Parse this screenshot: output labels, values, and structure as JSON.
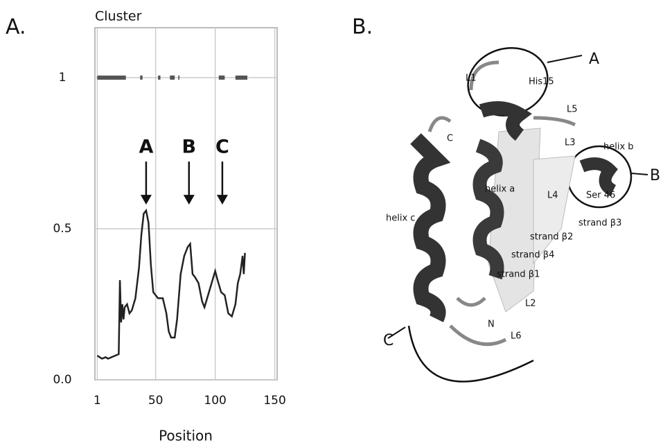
{
  "chart_data": {
    "type": "line",
    "panel_label": "A.",
    "ylabel": "Cluster",
    "xlabel": "Position",
    "x": [
      1,
      3,
      5,
      8,
      10,
      13,
      16,
      19,
      20,
      21,
      22,
      23,
      24,
      26,
      28,
      30,
      33,
      36,
      38,
      40,
      42,
      44,
      46,
      48,
      52,
      56,
      59,
      61,
      63,
      66,
      68,
      71,
      74,
      77,
      79,
      81,
      83,
      86,
      89,
      91,
      94,
      97,
      100,
      102,
      105,
      108,
      111,
      114,
      117,
      119,
      121,
      123,
      124,
      125
    ],
    "series": [
      {
        "color": "#222222",
        "values": [
          0.08,
          0.075,
          0.07,
          0.075,
          0.07,
          0.075,
          0.08,
          0.085,
          0.33,
          0.19,
          0.25,
          0.2,
          0.24,
          0.25,
          0.22,
          0.23,
          0.27,
          0.37,
          0.48,
          0.55,
          0.56,
          0.52,
          0.38,
          0.29,
          0.27,
          0.27,
          0.22,
          0.16,
          0.14,
          0.14,
          0.2,
          0.35,
          0.41,
          0.44,
          0.45,
          0.35,
          0.34,
          0.32,
          0.26,
          0.24,
          0.28,
          0.32,
          0.36,
          0.33,
          0.29,
          0.28,
          0.22,
          0.21,
          0.25,
          0.32,
          0.35,
          0.41,
          0.35,
          0.42
        ]
      }
    ],
    "segments": {
      "color": "#555555",
      "value": 1,
      "ranges": [
        [
          1,
          25
        ],
        [
          37,
          39
        ],
        [
          52,
          54
        ],
        [
          62,
          66
        ],
        [
          69,
          70
        ],
        [
          103,
          108
        ],
        [
          117,
          127
        ]
      ]
    },
    "annotations": [
      {
        "text": "A",
        "x": 42,
        "y": 0.58
      },
      {
        "text": "B",
        "x": 78,
        "y": 0.58
      },
      {
        "text": "C",
        "x": 106,
        "y": 0.58
      }
    ],
    "xlim": [
      -1,
      152
    ],
    "ylim": [
      0,
      1.165
    ],
    "xticks": [
      1,
      50,
      100,
      150
    ],
    "yticks": [
      {
        "value": 0,
        "label": "0.0"
      },
      0.5,
      1
    ],
    "grid": true
  },
  "diagram": {
    "panel_label": "B.",
    "labels": [
      "L1",
      "His15",
      "L5",
      "C",
      "L3",
      "helix b",
      "helix a",
      "L4",
      "Ser 46",
      "helix c",
      "strand β3",
      "strand β2",
      "strand β4",
      "strand β1",
      "L2",
      "N",
      "L6"
    ],
    "callouts": [
      "A",
      "B",
      "C"
    ]
  }
}
